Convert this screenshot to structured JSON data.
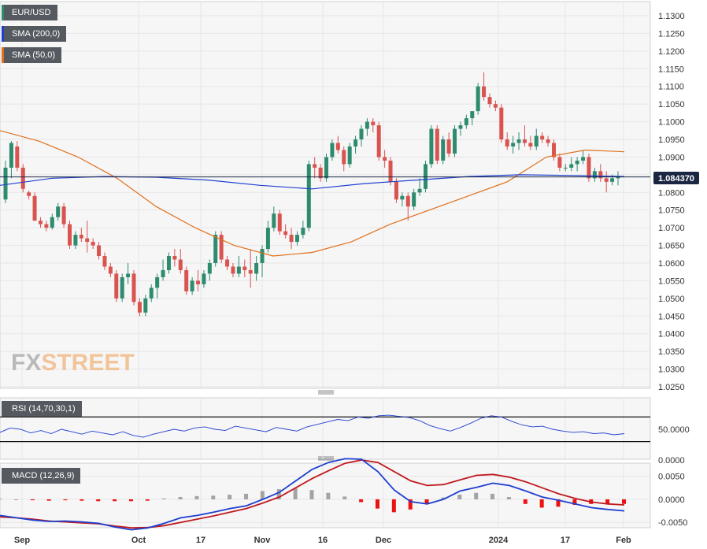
{
  "legend": {
    "symbol": "EUR/USD",
    "sma200": "SMA (200,0)",
    "sma50": "SMA (50,0)",
    "symbol_color": "#2e8b6e",
    "sma200_color": "#1f3fcf",
    "sma50_color": "#e0701d"
  },
  "rsi_label": "RSI (14,70,30,1)",
  "macd_label": "MACD (12,26,9)",
  "price_badge": "1.084370",
  "logo": {
    "fx": "FX",
    "street": "STREET"
  },
  "chart_data": [
    {
      "type": "candlestick",
      "title": "EUR/USD",
      "x_labels": [
        "Sep",
        "Oct",
        "17",
        "Nov",
        "16",
        "Dec",
        "2024",
        "17",
        "Feb"
      ],
      "y_ticks": [
        "1.1300",
        "1.1250",
        "1.1200",
        "1.1150",
        "1.1100",
        "1.1050",
        "1.1000",
        "1.0950",
        "1.0900",
        "1.0850",
        "1.0800",
        "1.0750",
        "1.0700",
        "1.0650",
        "1.0600",
        "1.0550",
        "1.0500",
        "1.0450",
        "1.0400",
        "1.0350",
        "1.0300",
        "1.0250"
      ],
      "ylim": [
        1.025,
        1.13
      ],
      "current_price": 1.08437,
      "up_color": "#2e8b6e",
      "down_color": "#d9534f",
      "ohlc": [
        [
          1.078,
          1.089,
          1.077,
          1.087
        ],
        [
          1.087,
          1.0945,
          1.084,
          1.094
        ],
        [
          1.093,
          1.0945,
          1.086,
          1.087
        ],
        [
          1.087,
          1.088,
          1.08,
          1.081
        ],
        [
          1.08,
          1.0805,
          1.078,
          1.079
        ],
        [
          1.079,
          1.08,
          1.072,
          1.072
        ],
        [
          1.072,
          1.073,
          1.07,
          1.071
        ],
        [
          1.071,
          1.072,
          1.069,
          1.07
        ],
        [
          1.07,
          1.074,
          1.0695,
          1.073
        ],
        [
          1.073,
          1.077,
          1.072,
          1.076
        ],
        [
          1.076,
          1.077,
          1.07,
          1.071
        ],
        [
          1.071,
          1.072,
          1.064,
          1.065
        ],
        [
          1.065,
          1.069,
          1.064,
          1.068
        ],
        [
          1.068,
          1.07,
          1.066,
          1.067
        ],
        [
          1.067,
          1.072,
          1.063,
          1.066
        ],
        [
          1.066,
          1.067,
          1.064,
          1.065
        ],
        [
          1.065,
          1.066,
          1.061,
          1.062
        ],
        [
          1.062,
          1.063,
          1.058,
          1.059
        ],
        [
          1.059,
          1.06,
          1.056,
          1.057
        ],
        [
          1.057,
          1.058,
          1.049,
          1.05
        ],
        [
          1.05,
          1.057,
          1.049,
          1.056
        ],
        [
          1.056,
          1.06,
          1.054,
          1.057
        ],
        [
          1.057,
          1.058,
          1.048,
          1.049
        ],
        [
          1.049,
          1.05,
          1.045,
          1.046
        ],
        [
          1.046,
          1.051,
          1.045,
          1.05
        ],
        [
          1.05,
          1.054,
          1.049,
          1.053
        ],
        [
          1.053,
          1.057,
          1.05,
          1.056
        ],
        [
          1.056,
          1.061,
          1.055,
          1.058
        ],
        [
          1.058,
          1.063,
          1.057,
          1.062
        ],
        [
          1.062,
          1.064,
          1.059,
          1.061
        ],
        [
          1.061,
          1.064,
          1.057,
          1.058
        ],
        [
          1.058,
          1.059,
          1.051,
          1.052
        ],
        [
          1.052,
          1.056,
          1.051,
          1.055
        ],
        [
          1.055,
          1.058,
          1.052,
          1.054
        ],
        [
          1.054,
          1.058,
          1.053,
          1.057
        ],
        [
          1.057,
          1.061,
          1.055,
          1.06
        ],
        [
          1.06,
          1.069,
          1.059,
          1.068
        ],
        [
          1.068,
          1.069,
          1.06,
          1.061
        ],
        [
          1.061,
          1.062,
          1.058,
          1.059
        ],
        [
          1.059,
          1.06,
          1.056,
          1.057
        ],
        [
          1.057,
          1.062,
          1.056,
          1.059
        ],
        [
          1.059,
          1.061,
          1.056,
          1.058
        ],
        [
          1.058,
          1.064,
          1.053,
          1.057
        ],
        [
          1.057,
          1.062,
          1.055,
          1.06
        ],
        [
          1.06,
          1.065,
          1.056,
          1.064
        ],
        [
          1.064,
          1.072,
          1.063,
          1.07
        ],
        [
          1.07,
          1.076,
          1.069,
          1.074
        ],
        [
          1.074,
          1.075,
          1.068,
          1.069
        ],
        [
          1.069,
          1.071,
          1.067,
          1.068
        ],
        [
          1.068,
          1.07,
          1.064,
          1.066
        ],
        [
          1.066,
          1.069,
          1.065,
          1.068
        ],
        [
          1.068,
          1.072,
          1.067,
          1.07
        ],
        [
          1.07,
          1.089,
          1.069,
          1.088
        ],
        [
          1.088,
          1.09,
          1.084,
          1.087
        ],
        [
          1.087,
          1.088,
          1.083,
          1.084
        ],
        [
          1.084,
          1.091,
          1.083,
          1.09
        ],
        [
          1.09,
          1.095,
          1.089,
          1.094
        ],
        [
          1.094,
          1.096,
          1.091,
          1.092
        ],
        [
          1.092,
          1.093,
          1.086,
          1.088
        ],
        [
          1.088,
          1.094,
          1.087,
          1.093
        ],
        [
          1.093,
          1.096,
          1.091,
          1.095
        ],
        [
          1.095,
          1.099,
          1.093,
          1.098
        ],
        [
          1.098,
          1.101,
          1.096,
          1.1
        ],
        [
          1.1,
          1.101,
          1.097,
          1.099
        ],
        [
          1.099,
          1.1,
          1.089,
          1.09
        ],
        [
          1.09,
          1.092,
          1.087,
          1.089
        ],
        [
          1.089,
          1.09,
          1.082,
          1.083
        ],
        [
          1.083,
          1.084,
          1.077,
          1.078
        ],
        [
          1.078,
          1.08,
          1.076,
          1.079
        ],
        [
          1.079,
          1.08,
          1.072,
          1.076
        ],
        [
          1.076,
          1.081,
          1.075,
          1.08
        ],
        [
          1.08,
          1.084,
          1.079,
          1.081
        ],
        [
          1.081,
          1.089,
          1.08,
          1.088
        ],
        [
          1.088,
          1.099,
          1.087,
          1.098
        ],
        [
          1.098,
          1.099,
          1.088,
          1.089
        ],
        [
          1.089,
          1.096,
          1.088,
          1.095
        ],
        [
          1.095,
          1.097,
          1.09,
          1.091
        ],
        [
          1.091,
          1.099,
          1.09,
          1.098
        ],
        [
          1.098,
          1.1,
          1.096,
          1.099
        ],
        [
          1.099,
          1.102,
          1.098,
          1.101
        ],
        [
          1.101,
          1.103,
          1.099,
          1.103
        ],
        [
          1.103,
          1.111,
          1.102,
          1.11
        ],
        [
          1.11,
          1.114,
          1.106,
          1.107
        ],
        [
          1.107,
          1.108,
          1.104,
          1.105
        ],
        [
          1.105,
          1.106,
          1.103,
          1.104
        ],
        [
          1.104,
          1.105,
          1.094,
          1.095
        ],
        [
          1.095,
          1.097,
          1.092,
          1.093
        ],
        [
          1.093,
          1.096,
          1.091,
          1.094
        ],
        [
          1.094,
          1.097,
          1.092,
          1.095
        ],
        [
          1.095,
          1.099,
          1.093,
          1.094
        ],
        [
          1.094,
          1.096,
          1.092,
          1.093
        ],
        [
          1.093,
          1.098,
          1.092,
          1.096
        ],
        [
          1.096,
          1.097,
          1.094,
          1.095
        ],
        [
          1.095,
          1.096,
          1.093,
          1.094
        ],
        [
          1.094,
          1.095,
          1.089,
          1.09
        ],
        [
          1.09,
          1.091,
          1.086,
          1.087
        ],
        [
          1.087,
          1.088,
          1.086,
          1.087
        ],
        [
          1.087,
          1.09,
          1.086,
          1.088
        ],
        [
          1.088,
          1.09,
          1.086,
          1.089
        ],
        [
          1.089,
          1.092,
          1.088,
          1.09
        ],
        [
          1.09,
          1.091,
          1.083,
          1.084
        ],
        [
          1.084,
          1.087,
          1.083,
          1.086
        ],
        [
          1.086,
          1.088,
          1.083,
          1.084
        ],
        [
          1.084,
          1.086,
          1.08,
          1.083
        ],
        [
          1.083,
          1.085,
          1.082,
          1.084
        ],
        [
          1.084,
          1.086,
          1.082,
          1.0844
        ]
      ],
      "sma50": [
        1.0975,
        1.0945,
        1.09,
        1.084,
        1.076,
        1.07,
        1.065,
        1.062,
        1.063,
        1.066,
        1.071,
        1.075,
        1.079,
        1.083,
        1.09,
        1.092,
        1.0915
      ],
      "sma200": [
        1.082,
        1.084,
        1.0845,
        1.0843,
        1.0835,
        1.082,
        1.081,
        1.0825,
        1.0835,
        1.0845,
        1.085,
        1.0848,
        1.0845
      ],
      "rsi": {
        "ylim": [
          0,
          100
        ],
        "y_ticks": [
          "50.0000",
          "0.0000"
        ],
        "levels": [
          70,
          30
        ],
        "values": [
          45,
          52,
          50,
          44,
          48,
          43,
          50,
          46,
          42,
          47,
          44,
          41,
          46,
          40,
          37,
          42,
          46,
          50,
          47,
          52,
          54,
          50,
          48,
          55,
          52,
          49,
          46,
          53,
          50,
          47,
          54,
          58,
          62,
          66,
          64,
          70,
          68,
          72,
          73,
          71,
          69,
          64,
          56,
          51,
          47,
          53,
          60,
          68,
          72,
          70,
          63,
          57,
          54,
          55,
          50,
          47,
          45,
          46,
          43,
          44,
          41,
          43
        ]
      },
      "macd": {
        "ylim": [
          -0.0065,
          0.0075
        ],
        "y_ticks": [
          "0.0050",
          "0.0000",
          "-0.0050"
        ],
        "macd_color": "#1f3fcf",
        "signal_color": "#c0191e",
        "hist_up_color": "#a3a3a3",
        "hist_down_color": "#ee1111",
        "macd": [
          -0.0035,
          -0.004,
          -0.0045,
          -0.0048,
          -0.0047,
          -0.0049,
          -0.0052,
          -0.006,
          -0.0066,
          -0.0062,
          -0.0052,
          -0.004,
          -0.0035,
          -0.0028,
          -0.002,
          -0.0014,
          0.0,
          0.0015,
          0.004,
          0.0065,
          0.008,
          0.0088,
          0.0087,
          0.006,
          0.002,
          -0.0005,
          -0.001,
          0.0,
          0.0018,
          0.0026,
          0.0035,
          0.003,
          0.0018,
          0.0005,
          -0.0002,
          -0.001,
          -0.0018,
          -0.0022,
          -0.0025
        ],
        "signal": [
          -0.0038,
          -0.004,
          -0.0043,
          -0.0047,
          -0.0049,
          -0.0051,
          -0.0053,
          -0.0058,
          -0.0062,
          -0.0061,
          -0.0057,
          -0.005,
          -0.0043,
          -0.0036,
          -0.0028,
          -0.002,
          -0.0008,
          0.0005,
          0.0025,
          0.0045,
          0.0062,
          0.0078,
          0.0085,
          0.008,
          0.006,
          0.004,
          0.003,
          0.0032,
          0.0042,
          0.0052,
          0.0054,
          0.0048,
          0.0038,
          0.0025,
          0.0012,
          0.0002,
          -0.0006,
          -0.001,
          -0.0012
        ],
        "histogram": [
          0.0002,
          0.0,
          -0.0002,
          -0.0003,
          -0.0002,
          -0.0003,
          -0.0004,
          -0.0004,
          -0.0004,
          -0.0003,
          0.0002,
          0.0005,
          0.0007,
          0.0008,
          0.001,
          0.0012,
          0.0018,
          0.0022,
          0.0024,
          0.002,
          0.0014,
          0.0006,
          -0.0006,
          -0.002,
          -0.0028,
          -0.0022,
          -0.001,
          0.0004,
          0.001,
          0.0014,
          0.0012,
          0.0005,
          -0.001,
          -0.0018,
          -0.0016,
          -0.0012,
          -0.001,
          -0.001,
          -0.001
        ]
      }
    }
  ]
}
